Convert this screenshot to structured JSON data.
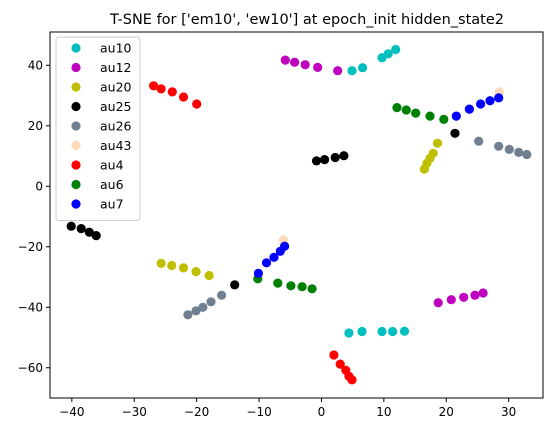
{
  "chart_data": {
    "type": "scatter",
    "title": "T-SNE for ['em10', 'ew10'] at epoch_init hidden_state2",
    "xlabel": "",
    "ylabel": "",
    "xlim": [
      -43.5,
      35.5
    ],
    "ylim": [
      -70,
      51
    ],
    "xticks": [
      -40,
      -30,
      -20,
      -10,
      0,
      10,
      20,
      30
    ],
    "yticks": [
      -60,
      -40,
      -20,
      0,
      20,
      40
    ],
    "grid": false,
    "legend_position": "top-left",
    "series": [
      {
        "name": "au10",
        "color": "#00bfbf",
        "points": [
          [
            4.9,
            38.2
          ],
          [
            6.6,
            39.2
          ],
          [
            9.7,
            42.5
          ],
          [
            10.7,
            43.8
          ],
          [
            11.9,
            45.2
          ],
          [
            4.4,
            -48.5
          ],
          [
            6.5,
            -48.0
          ],
          [
            9.7,
            -48.0
          ],
          [
            11.4,
            -48.0
          ],
          [
            13.3,
            -47.9
          ]
        ]
      },
      {
        "name": "au12",
        "color": "#bf00bf",
        "points": [
          [
            -5.8,
            41.7
          ],
          [
            -4.3,
            41.0
          ],
          [
            -2.6,
            40.2
          ],
          [
            -0.6,
            39.3
          ],
          [
            2.6,
            38.2
          ],
          [
            18.7,
            -38.5
          ],
          [
            20.8,
            -37.5
          ],
          [
            22.8,
            -36.7
          ],
          [
            24.6,
            -36.0
          ],
          [
            25.9,
            -35.3
          ]
        ]
      },
      {
        "name": "au20",
        "color": "#bfbf00",
        "points": [
          [
            -25.7,
            -25.5
          ],
          [
            -24.0,
            -26.2
          ],
          [
            -22.1,
            -27.0
          ],
          [
            -20.1,
            -28.2
          ],
          [
            -18.0,
            -29.5
          ],
          [
            16.5,
            5.7
          ],
          [
            16.9,
            7.6
          ],
          [
            17.4,
            9.2
          ],
          [
            17.9,
            10.9
          ],
          [
            18.6,
            14.2
          ]
        ]
      },
      {
        "name": "au25",
        "color": "#000000",
        "points": [
          [
            -40.1,
            -13.2
          ],
          [
            -38.5,
            -14.0
          ],
          [
            -37.2,
            -15.2
          ],
          [
            -36.1,
            -16.3
          ],
          [
            -13.9,
            -32.6
          ],
          [
            -0.8,
            8.4
          ],
          [
            0.5,
            8.8
          ],
          [
            2.2,
            9.5
          ],
          [
            3.6,
            10.1
          ],
          [
            21.4,
            17.5
          ]
        ]
      },
      {
        "name": "au26",
        "color": "#708090",
        "points": [
          [
            -21.4,
            -42.5
          ],
          [
            -20.1,
            -41.2
          ],
          [
            -19.0,
            -40.0
          ],
          [
            -17.7,
            -38.2
          ],
          [
            -16.0,
            -36.0
          ],
          [
            25.2,
            14.9
          ],
          [
            28.4,
            13.2
          ],
          [
            30.1,
            12.2
          ],
          [
            31.6,
            11.2
          ],
          [
            32.9,
            10.5
          ]
        ]
      },
      {
        "name": "au43",
        "color": "#ffdab9",
        "points": [
          [
            -6.1,
            -17.7
          ],
          [
            28.5,
            31.2
          ]
        ]
      },
      {
        "name": "au4",
        "color": "#ff0000",
        "points": [
          [
            -26.9,
            33.2
          ],
          [
            -25.7,
            32.2
          ],
          [
            -23.9,
            31.2
          ],
          [
            -22.1,
            29.5
          ],
          [
            -20.0,
            27.2
          ],
          [
            2.0,
            -55.8
          ],
          [
            3.0,
            -58.8
          ],
          [
            3.9,
            -60.8
          ],
          [
            4.4,
            -62.8
          ],
          [
            4.9,
            -64.0
          ]
        ]
      },
      {
        "name": "au6",
        "color": "#008000",
        "points": [
          [
            12.1,
            26.0
          ],
          [
            13.6,
            25.2
          ],
          [
            15.1,
            24.2
          ],
          [
            17.4,
            23.2
          ],
          [
            19.6,
            22.1
          ],
          [
            -10.2,
            -30.6
          ],
          [
            -7.0,
            -32.0
          ],
          [
            -4.9,
            -32.9
          ],
          [
            -3.1,
            -33.2
          ],
          [
            -1.5,
            -33.9
          ]
        ]
      },
      {
        "name": "au7",
        "color": "#0000ff",
        "points": [
          [
            21.6,
            23.2
          ],
          [
            23.7,
            25.5
          ],
          [
            25.5,
            27.2
          ],
          [
            27.0,
            28.3
          ],
          [
            28.4,
            29.2
          ],
          [
            -10.1,
            -28.8
          ],
          [
            -8.8,
            -25.3
          ],
          [
            -7.6,
            -23.5
          ],
          [
            -6.6,
            -21.5
          ],
          [
            -5.9,
            -19.8
          ]
        ]
      }
    ]
  }
}
